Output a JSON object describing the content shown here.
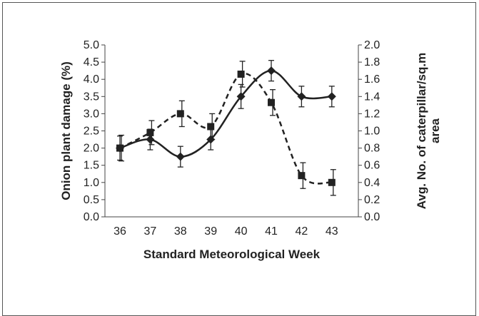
{
  "chart_data": {
    "type": "line",
    "title": "",
    "xlabel": "Standard Meteorological Week",
    "ylabel_left": [
      "Onion plant damage (%)"
    ],
    "ylabel_right": [
      "Avg. No. of caterpillar/sq.m",
      "area"
    ],
    "categories": [
      "36",
      "37",
      "38",
      "39",
      "40",
      "41",
      "42",
      "43"
    ],
    "ylim_left": [
      0,
      5
    ],
    "ylim_right": [
      0,
      2
    ],
    "yticks_left": [
      "0.0",
      "0.5",
      "1.0",
      "1.5",
      "2.0",
      "2.5",
      "3.0",
      "3.5",
      "4.0",
      "4.5",
      "5.0"
    ],
    "yticks_right": [
      "0.0",
      "0.2",
      "0.4",
      "0.6",
      "0.8",
      "1.0",
      "1.2",
      "1.4",
      "1.6",
      "1.8",
      "2.0"
    ],
    "grid": false,
    "legend": "none",
    "series": [
      {
        "axis": "left",
        "style": "solid",
        "marker": "diamond",
        "color": "#222222",
        "values": [
          2.0,
          2.25,
          1.75,
          2.25,
          3.5,
          4.25,
          3.5,
          3.5
        ],
        "errors": [
          0.35,
          0.3,
          0.3,
          0.3,
          0.35,
          0.3,
          0.3,
          0.3
        ]
      },
      {
        "axis": "right",
        "style": "dashed",
        "marker": "square",
        "color": "#222222",
        "values": [
          0.8,
          0.98,
          1.2,
          1.05,
          1.66,
          1.33,
          0.48,
          0.4
        ],
        "errors": [
          0.15,
          0.14,
          0.15,
          0.15,
          0.15,
          0.15,
          0.15,
          0.15
        ]
      }
    ]
  }
}
